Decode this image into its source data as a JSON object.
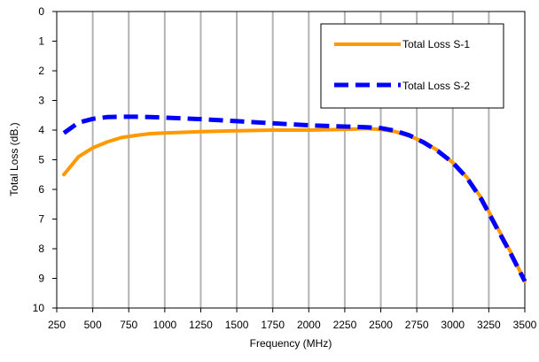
{
  "chart_data": {
    "type": "line",
    "title": "",
    "xlabel": "Frequency (MHz)",
    "ylabel": "Total Loss (dB.)",
    "xlim": [
      250,
      3500
    ],
    "ylim": [
      0,
      10
    ],
    "y_inverted": true,
    "x_ticks": [
      250,
      500,
      750,
      1000,
      1250,
      1500,
      1750,
      2000,
      2250,
      2500,
      2750,
      3000,
      3250,
      3500
    ],
    "y_ticks": [
      0,
      1,
      2,
      3,
      4,
      5,
      6,
      7,
      8,
      9,
      10
    ],
    "grid": "vertical",
    "legend_position": "top-right",
    "series": [
      {
        "name": "Total Loss S-1",
        "color": "#FF9900",
        "style": "solid",
        "points": [
          [
            300,
            5.5
          ],
          [
            400,
            4.9
          ],
          [
            500,
            4.6
          ],
          [
            600,
            4.4
          ],
          [
            700,
            4.25
          ],
          [
            800,
            4.18
          ],
          [
            900,
            4.12
          ],
          [
            1000,
            4.1
          ],
          [
            1250,
            4.05
          ],
          [
            1500,
            4.02
          ],
          [
            1750,
            4.0
          ],
          [
            2000,
            4.0
          ],
          [
            2250,
            3.98
          ],
          [
            2400,
            3.95
          ],
          [
            2500,
            3.98
          ],
          [
            2600,
            4.05
          ],
          [
            2700,
            4.2
          ],
          [
            2800,
            4.4
          ],
          [
            2900,
            4.7
          ],
          [
            3000,
            5.1
          ],
          [
            3100,
            5.6
          ],
          [
            3200,
            6.3
          ],
          [
            3300,
            7.2
          ],
          [
            3400,
            8.1
          ],
          [
            3500,
            9.1
          ]
        ]
      },
      {
        "name": "Total Loss S-2",
        "color": "#0000FF",
        "style": "dashed",
        "points": [
          [
            300,
            4.1
          ],
          [
            400,
            3.75
          ],
          [
            500,
            3.62
          ],
          [
            600,
            3.56
          ],
          [
            700,
            3.55
          ],
          [
            800,
            3.55
          ],
          [
            900,
            3.56
          ],
          [
            1000,
            3.58
          ],
          [
            1250,
            3.63
          ],
          [
            1500,
            3.7
          ],
          [
            1750,
            3.77
          ],
          [
            2000,
            3.84
          ],
          [
            2250,
            3.88
          ],
          [
            2400,
            3.9
          ],
          [
            2500,
            3.93
          ],
          [
            2600,
            4.02
          ],
          [
            2700,
            4.18
          ],
          [
            2800,
            4.42
          ],
          [
            2900,
            4.72
          ],
          [
            3000,
            5.1
          ],
          [
            3100,
            5.62
          ],
          [
            3200,
            6.35
          ],
          [
            3300,
            7.25
          ],
          [
            3400,
            8.15
          ],
          [
            3500,
            9.1
          ]
        ]
      }
    ]
  }
}
